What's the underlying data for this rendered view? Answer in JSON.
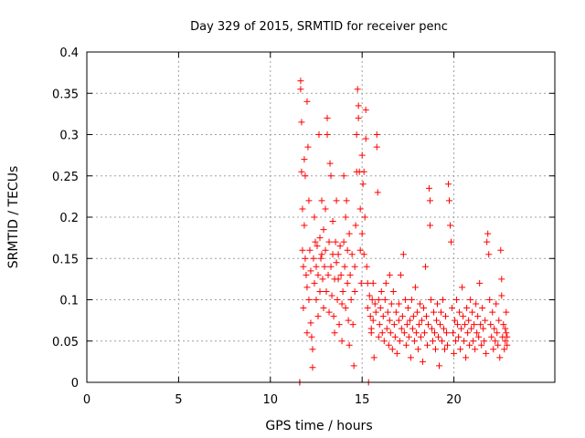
{
  "chart_data": {
    "type": "scatter",
    "title": "Day 329 of 2015, SRMTID for receiver penc",
    "xlabel": "GPS time / hours",
    "ylabel": "SRMTID / TECUs",
    "xlim": [
      0,
      25.5
    ],
    "ylim": [
      0,
      0.4
    ],
    "xticks": [
      0,
      5,
      10,
      15,
      20
    ],
    "yticks": [
      0,
      0.05,
      0.1,
      0.15,
      0.2,
      0.25,
      0.3,
      0.35,
      0.4
    ],
    "xtick_labels": [
      "0",
      "5",
      "10",
      "15",
      "20"
    ],
    "ytick_labels": [
      "0",
      "0.05",
      "0.1",
      "0.15",
      "0.2",
      "0.25",
      "0.3",
      "0.35",
      "0.4"
    ],
    "grid": true,
    "marker": "+",
    "color": "#ff0000",
    "series": [
      {
        "name": "SRMTID",
        "points": [
          [
            11.6,
            0.0
          ],
          [
            11.6,
            0.0
          ],
          [
            11.65,
            0.365
          ],
          [
            11.65,
            0.355
          ],
          [
            11.7,
            0.315
          ],
          [
            11.7,
            0.255
          ],
          [
            11.75,
            0.21
          ],
          [
            11.75,
            0.16
          ],
          [
            11.8,
            0.14
          ],
          [
            11.8,
            0.09
          ],
          [
            11.85,
            0.27
          ],
          [
            11.85,
            0.19
          ],
          [
            11.9,
            0.25
          ],
          [
            11.9,
            0.15
          ],
          [
            11.95,
            0.13
          ],
          [
            12.0,
            0.06
          ],
          [
            12.0,
            0.34
          ],
          [
            12.0,
            0.115
          ],
          [
            12.05,
            0.285
          ],
          [
            12.1,
            0.22
          ],
          [
            12.1,
            0.1
          ],
          [
            12.15,
            0.16
          ],
          [
            12.2,
            0.135
          ],
          [
            12.2,
            0.072
          ],
          [
            12.25,
            0.055
          ],
          [
            12.3,
            0.04
          ],
          [
            12.3,
            0.018
          ],
          [
            12.35,
            0.15
          ],
          [
            12.4,
            0.2
          ],
          [
            12.4,
            0.12
          ],
          [
            12.45,
            0.17
          ],
          [
            12.5,
            0.14
          ],
          [
            12.5,
            0.1
          ],
          [
            12.55,
            0.165
          ],
          [
            12.6,
            0.13
          ],
          [
            12.6,
            0.08
          ],
          [
            12.65,
            0.3
          ],
          [
            12.7,
            0.175
          ],
          [
            12.7,
            0.11
          ],
          [
            12.75,
            0.15
          ],
          [
            12.8,
            0.22
          ],
          [
            12.8,
            0.155
          ],
          [
            12.85,
            0.125
          ],
          [
            12.9,
            0.185
          ],
          [
            12.9,
            0.09
          ],
          [
            12.95,
            0.14
          ],
          [
            13.0,
            0.16
          ],
          [
            13.0,
            0.21
          ],
          [
            13.05,
            0.11
          ],
          [
            13.1,
            0.32
          ],
          [
            13.1,
            0.3
          ],
          [
            13.15,
            0.13
          ],
          [
            13.2,
            0.17
          ],
          [
            13.2,
            0.085
          ],
          [
            13.25,
            0.265
          ],
          [
            13.3,
            0.25
          ],
          [
            13.3,
            0.14
          ],
          [
            13.35,
            0.105
          ],
          [
            13.4,
            0.195
          ],
          [
            13.4,
            0.155
          ],
          [
            13.45,
            0.08
          ],
          [
            13.5,
            0.125
          ],
          [
            13.5,
            0.06
          ],
          [
            13.55,
            0.17
          ],
          [
            13.6,
            0.22
          ],
          [
            13.6,
            0.145
          ],
          [
            13.65,
            0.1
          ],
          [
            13.7,
            0.155
          ],
          [
            13.7,
            0.125
          ],
          [
            13.75,
            0.07
          ],
          [
            13.8,
            0.165
          ],
          [
            13.85,
            0.13
          ],
          [
            13.9,
            0.095
          ],
          [
            13.9,
            0.05
          ],
          [
            13.95,
            0.11
          ],
          [
            14.0,
            0.25
          ],
          [
            14.0,
            0.17
          ],
          [
            14.05,
            0.14
          ],
          [
            14.1,
            0.2
          ],
          [
            14.1,
            0.09
          ],
          [
            14.15,
            0.22
          ],
          [
            14.2,
            0.16
          ],
          [
            14.2,
            0.12
          ],
          [
            14.25,
            0.075
          ],
          [
            14.3,
            0.045
          ],
          [
            14.3,
            0.18
          ],
          [
            14.35,
            0.13
          ],
          [
            14.4,
            0.1
          ],
          [
            14.45,
            0.155
          ],
          [
            14.5,
            0.07
          ],
          [
            14.55,
            0.02
          ],
          [
            14.6,
            0.14
          ],
          [
            14.6,
            0.11
          ],
          [
            14.65,
            0.19
          ],
          [
            14.7,
            0.3
          ],
          [
            14.7,
            0.255
          ],
          [
            14.75,
            0.355
          ],
          [
            14.8,
            0.335
          ],
          [
            14.8,
            0.32
          ],
          [
            14.85,
            0.255
          ],
          [
            14.9,
            0.21
          ],
          [
            14.9,
            0.16
          ],
          [
            14.95,
            0.12
          ],
          [
            15.0,
            0.275
          ],
          [
            15.0,
            0.18
          ],
          [
            15.05,
            0.24
          ],
          [
            15.1,
            0.255
          ],
          [
            15.1,
            0.155
          ],
          [
            15.15,
            0.2
          ],
          [
            15.2,
            0.33
          ],
          [
            15.2,
            0.295
          ],
          [
            15.25,
            0.14
          ],
          [
            15.3,
            0.12
          ],
          [
            15.3,
            0.09
          ],
          [
            15.35,
            0.0
          ],
          [
            15.4,
            0.105
          ],
          [
            15.45,
            0.08
          ],
          [
            15.5,
            0.065
          ],
          [
            15.5,
            0.06
          ],
          [
            15.55,
            0.1
          ],
          [
            15.6,
            0.12
          ],
          [
            15.6,
            0.075
          ],
          [
            15.65,
            0.03
          ],
          [
            15.7,
            0.095
          ],
          [
            15.75,
            0.085
          ],
          [
            15.8,
            0.3
          ],
          [
            15.8,
            0.285
          ],
          [
            15.85,
            0.23
          ],
          [
            15.9,
            0.1
          ],
          [
            15.9,
            0.055
          ],
          [
            15.95,
            0.07
          ],
          [
            16.0,
            0.09
          ],
          [
            16.05,
            0.11
          ],
          [
            16.1,
            0.06
          ],
          [
            16.15,
            0.08
          ],
          [
            16.2,
            0.05
          ],
          [
            16.25,
            0.1
          ],
          [
            16.3,
            0.12
          ],
          [
            16.35,
            0.065
          ],
          [
            16.4,
            0.085
          ],
          [
            16.45,
            0.045
          ],
          [
            16.5,
            0.13
          ],
          [
            16.5,
            0.075
          ],
          [
            16.55,
            0.06
          ],
          [
            16.6,
            0.095
          ],
          [
            16.65,
            0.04
          ],
          [
            16.7,
            0.11
          ],
          [
            16.75,
            0.07
          ],
          [
            16.8,
            0.055
          ],
          [
            16.85,
            0.085
          ],
          [
            16.9,
            0.035
          ],
          [
            17.0,
            0.075
          ],
          [
            17.0,
            0.095
          ],
          [
            17.05,
            0.05
          ],
          [
            17.1,
            0.13
          ],
          [
            17.15,
            0.065
          ],
          [
            17.2,
            0.08
          ],
          [
            17.25,
            0.155
          ],
          [
            17.3,
            0.06
          ],
          [
            17.35,
            0.1
          ],
          [
            17.4,
            0.045
          ],
          [
            17.45,
            0.07
          ],
          [
            17.5,
            0.09
          ],
          [
            17.55,
            0.055
          ],
          [
            17.6,
            0.075
          ],
          [
            17.65,
            0.03
          ],
          [
            17.7,
            0.1
          ],
          [
            17.75,
            0.065
          ],
          [
            17.8,
            0.08
          ],
          [
            17.85,
            0.05
          ],
          [
            17.9,
            0.115
          ],
          [
            17.95,
            0.06
          ],
          [
            18.0,
            0.085
          ],
          [
            18.05,
            0.04
          ],
          [
            18.1,
            0.07
          ],
          [
            18.15,
            0.095
          ],
          [
            18.2,
            0.055
          ],
          [
            18.25,
            0.075
          ],
          [
            18.3,
            0.025
          ],
          [
            18.35,
            0.09
          ],
          [
            18.4,
            0.06
          ],
          [
            18.45,
            0.14
          ],
          [
            18.5,
            0.08
          ],
          [
            18.55,
            0.045
          ],
          [
            18.6,
            0.07
          ],
          [
            18.65,
            0.235
          ],
          [
            18.7,
            0.22
          ],
          [
            18.7,
            0.19
          ],
          [
            18.75,
            0.1
          ],
          [
            18.8,
            0.065
          ],
          [
            18.85,
            0.05
          ],
          [
            18.9,
            0.085
          ],
          [
            18.95,
            0.06
          ],
          [
            19.0,
            0.04
          ],
          [
            19.05,
            0.075
          ],
          [
            19.1,
            0.095
          ],
          [
            19.15,
            0.055
          ],
          [
            19.2,
            0.02
          ],
          [
            19.25,
            0.07
          ],
          [
            19.3,
            0.085
          ],
          [
            19.35,
            0.05
          ],
          [
            19.4,
            0.1
          ],
          [
            19.45,
            0.065
          ],
          [
            19.5,
            0.04
          ],
          [
            19.55,
            0.08
          ],
          [
            19.6,
            0.06
          ],
          [
            19.65,
            0.045
          ],
          [
            19.7,
            0.24
          ],
          [
            19.75,
            0.22
          ],
          [
            19.8,
            0.19
          ],
          [
            19.85,
            0.17
          ],
          [
            19.9,
            0.09
          ],
          [
            19.95,
            0.06
          ],
          [
            20.0,
            0.035
          ],
          [
            20.05,
            0.075
          ],
          [
            20.1,
            0.05
          ],
          [
            20.15,
            0.1
          ],
          [
            20.2,
            0.07
          ],
          [
            20.25,
            0.055
          ],
          [
            20.3,
            0.085
          ],
          [
            20.35,
            0.04
          ],
          [
            20.4,
            0.065
          ],
          [
            20.45,
            0.115
          ],
          [
            20.5,
            0.08
          ],
          [
            20.55,
            0.05
          ],
          [
            20.6,
            0.07
          ],
          [
            20.65,
            0.03
          ],
          [
            20.7,
            0.09
          ],
          [
            20.75,
            0.06
          ],
          [
            20.8,
            0.075
          ],
          [
            20.85,
            0.045
          ],
          [
            20.9,
            0.1
          ],
          [
            20.95,
            0.065
          ],
          [
            21.0,
            0.085
          ],
          [
            21.05,
            0.05
          ],
          [
            21.1,
            0.07
          ],
          [
            21.15,
            0.04
          ],
          [
            21.2,
            0.095
          ],
          [
            21.25,
            0.06
          ],
          [
            21.3,
            0.08
          ],
          [
            21.35,
            0.055
          ],
          [
            21.4,
            0.12
          ],
          [
            21.45,
            0.07
          ],
          [
            21.5,
            0.045
          ],
          [
            21.55,
            0.09
          ],
          [
            21.6,
            0.065
          ],
          [
            21.65,
            0.05
          ],
          [
            21.7,
            0.075
          ],
          [
            21.75,
            0.035
          ],
          [
            21.8,
            0.17
          ],
          [
            21.85,
            0.18
          ],
          [
            21.9,
            0.155
          ],
          [
            21.95,
            0.1
          ],
          [
            22.0,
            0.07
          ],
          [
            22.05,
            0.055
          ],
          [
            22.1,
            0.085
          ],
          [
            22.15,
            0.04
          ],
          [
            22.2,
            0.065
          ],
          [
            22.25,
            0.05
          ],
          [
            22.3,
            0.095
          ],
          [
            22.35,
            0.06
          ],
          [
            22.4,
            0.045
          ],
          [
            22.45,
            0.075
          ],
          [
            22.5,
            0.03
          ],
          [
            22.55,
            0.16
          ],
          [
            22.6,
            0.125
          ],
          [
            22.6,
            0.105
          ],
          [
            22.65,
            0.055
          ],
          [
            22.7,
            0.07
          ],
          [
            22.75,
            0.04
          ],
          [
            22.8,
            0.05
          ],
          [
            22.8,
            0.065
          ],
          [
            22.85,
            0.085
          ],
          [
            22.85,
            0.06
          ],
          [
            22.9,
            0.045
          ],
          [
            22.9,
            0.055
          ]
        ]
      }
    ]
  }
}
